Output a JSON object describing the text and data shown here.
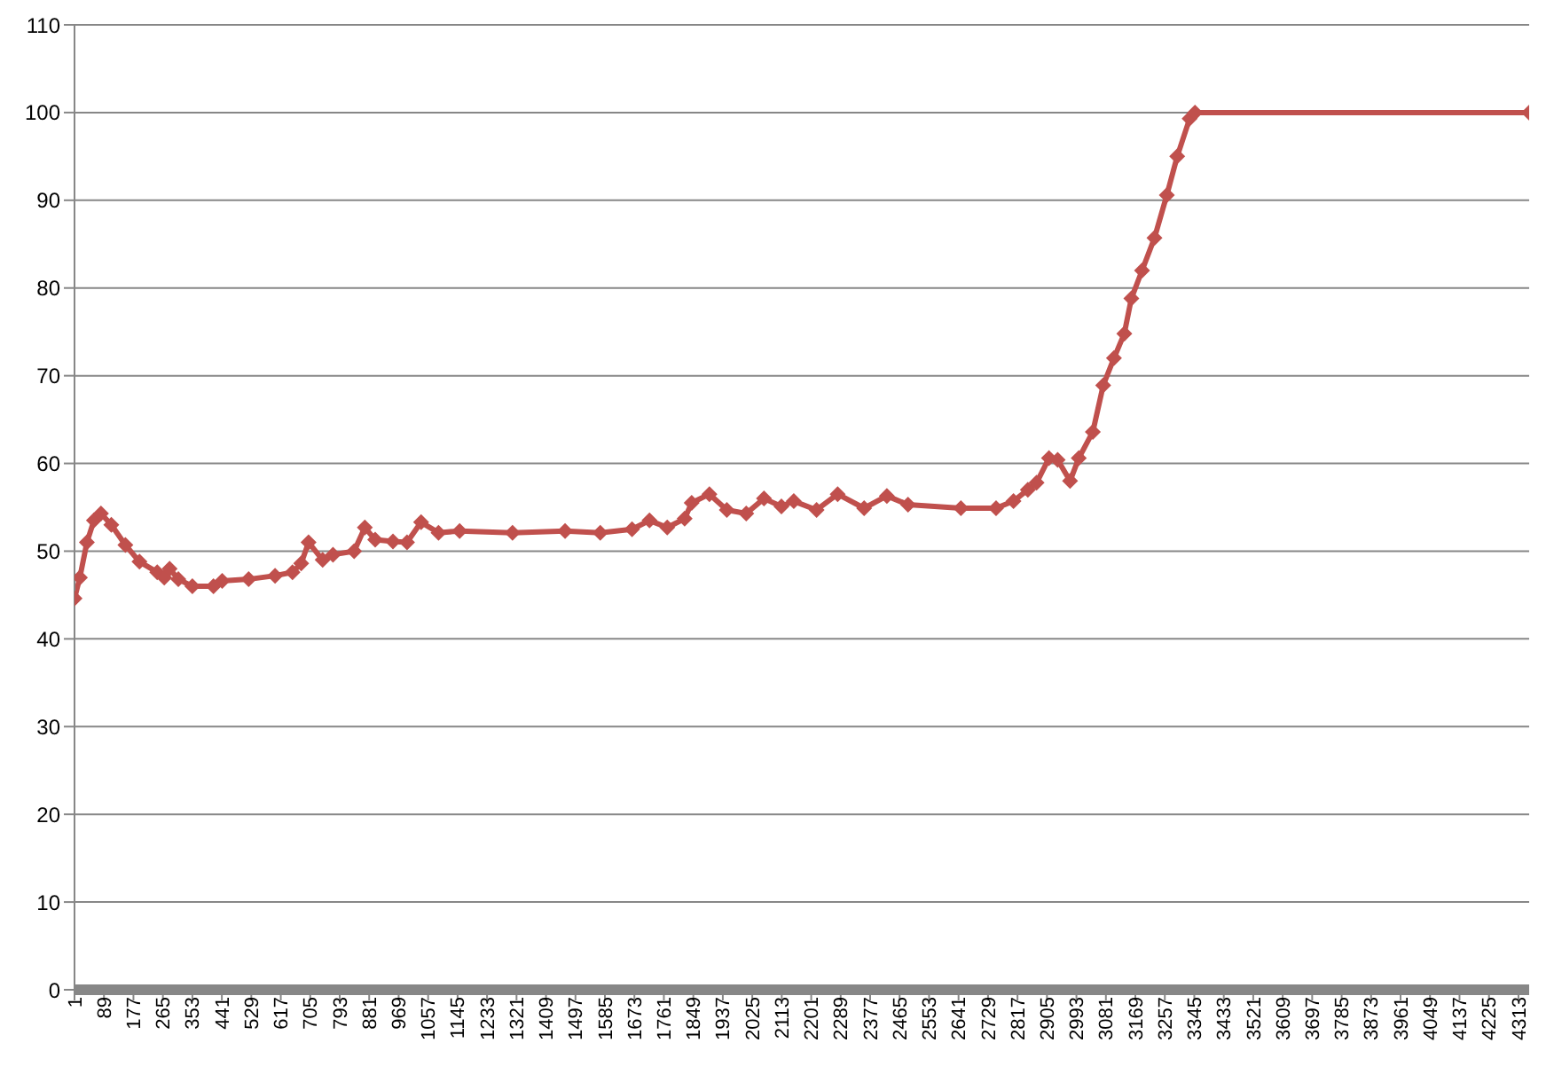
{
  "chart_data": {
    "type": "line",
    "x": [
      1,
      17,
      38,
      59,
      80,
      111,
      153,
      195,
      248,
      269,
      285,
      311,
      353,
      416,
      442,
      521,
      600,
      652,
      678,
      700,
      742,
      773,
      836,
      868,
      899,
      952,
      994,
      1036,
      1088,
      1151,
      1309,
      1466,
      1571,
      1666,
      1718,
      1771,
      1823,
      1844,
      1897,
      1949,
      2007,
      2060,
      2112,
      2149,
      2217,
      2280,
      2359,
      2427,
      2490,
      2648,
      2753,
      2805,
      2848,
      2874,
      2911,
      2937,
      2974,
      3000,
      3042,
      3073,
      3105,
      3136,
      3157,
      3189,
      3226,
      3263,
      3294,
      3331,
      3347,
      4345
    ],
    "series": [
      {
        "color": "#c0504d",
        "values": [
          44.6,
          47,
          51,
          53.5,
          54.3,
          53,
          50.7,
          48.8,
          47.6,
          47,
          48,
          46.8,
          46,
          46,
          46.6,
          46.8,
          47.2,
          47.6,
          48.6,
          51,
          49,
          49.6,
          50,
          52.7,
          51.3,
          51.1,
          51,
          53.3,
          52.1,
          52.3,
          52.1,
          52.3,
          52.1,
          52.5,
          53.5,
          52.7,
          53.7,
          55.5,
          56.5,
          54.7,
          54.3,
          56,
          55.1,
          55.7,
          54.7,
          56.5,
          54.9,
          56.3,
          55.3,
          54.9,
          54.9,
          55.7,
          57,
          57.8,
          60.6,
          60.4,
          58,
          60.6,
          63.6,
          68.9,
          72,
          74.8,
          78.8,
          82,
          85.7,
          90.6,
          95,
          99.3,
          100,
          100
        ]
      }
    ],
    "xlim": [
      1,
      4345
    ],
    "xticks": [
      1,
      89,
      177,
      265,
      353,
      441,
      529,
      617,
      705,
      793,
      881,
      969,
      1057,
      1145,
      1233,
      1321,
      1409,
      1497,
      1585,
      1673,
      1761,
      1849,
      1937,
      2025,
      2113,
      2201,
      2289,
      2377,
      2465,
      2553,
      2641,
      2729,
      2817,
      2905,
      2993,
      3081,
      3169,
      3257,
      3345,
      3433,
      3521,
      3609,
      3697,
      3785,
      3873,
      3961,
      4049,
      4137,
      4225,
      4313
    ],
    "ylim": [
      0,
      110
    ],
    "yticks": [
      0,
      10,
      20,
      30,
      40,
      50,
      60,
      70,
      80,
      90,
      100,
      110
    ],
    "grid": "y",
    "legend": false,
    "marker": "diamond",
    "line_style": "solid"
  }
}
